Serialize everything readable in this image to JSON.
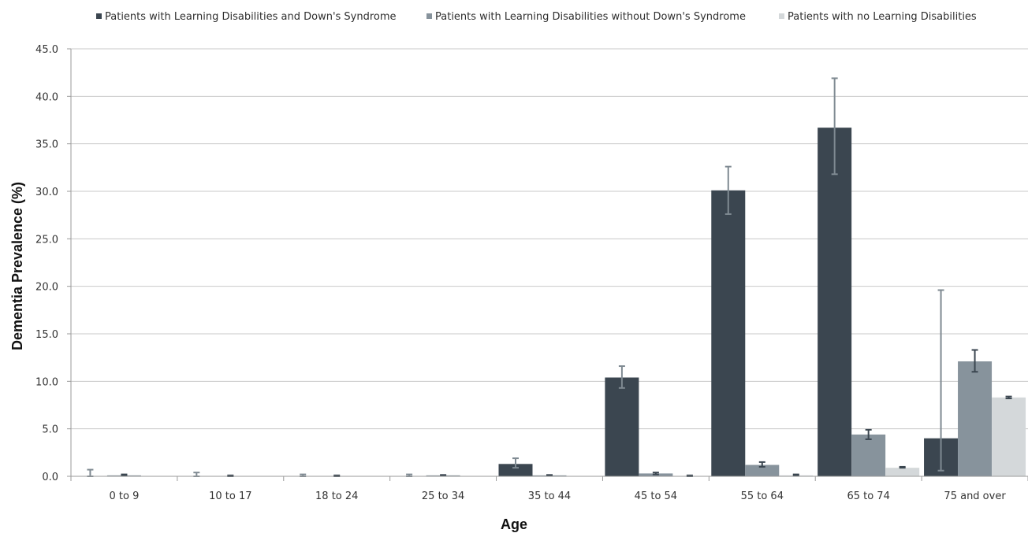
{
  "chart_data": {
    "type": "bar",
    "title": "",
    "xlabel": "Age",
    "ylabel": "Dementia Prevalence (%)",
    "ylim": [
      0,
      45
    ],
    "yticks": [
      "0.0",
      "5.0",
      "10.0",
      "15.0",
      "20.0",
      "25.0",
      "30.0",
      "35.0",
      "40.0",
      "45.0"
    ],
    "grid": true,
    "legend_position": "top",
    "categories": [
      "0 to 9",
      "10 to 17",
      "18 to 24",
      "25 to 34",
      "35 to 44",
      "45 to 54",
      "55 to 64",
      "65 to 74",
      "75 and over"
    ],
    "series": [
      {
        "name": "Patients with Learning Disabilities and Down's Syndrome",
        "color": "#3b4650",
        "values": [
          0.0,
          0.0,
          0.0,
          0.0,
          1.3,
          10.4,
          30.1,
          36.7,
          4.0
        ],
        "error_low": [
          0.0,
          0.0,
          0.0,
          0.0,
          0.9,
          9.3,
          27.6,
          31.8,
          0.6
        ],
        "error_high": [
          0.7,
          0.4,
          0.2,
          0.2,
          1.9,
          11.6,
          32.6,
          41.9,
          19.6
        ]
      },
      {
        "name": "Patients with Learning Disabilities without Down's Syndrome",
        "color": "#87939c",
        "values": [
          0.1,
          0.0,
          0.0,
          0.1,
          0.1,
          0.3,
          1.2,
          4.4,
          12.1
        ],
        "error_low": [
          0.1,
          0.0,
          0.0,
          0.1,
          0.1,
          0.2,
          1.0,
          3.9,
          11.0
        ],
        "error_high": [
          0.2,
          0.1,
          0.1,
          0.1,
          0.1,
          0.4,
          1.5,
          4.9,
          13.3
        ]
      },
      {
        "name": "Patients with no Learning Disabilities",
        "color": "#d4d8da",
        "values": [
          0.0,
          0.0,
          0.0,
          0.0,
          0.0,
          0.0,
          0.1,
          0.9,
          8.3
        ],
        "error_low": [
          0.0,
          0.0,
          0.0,
          0.0,
          0.0,
          0.0,
          0.1,
          0.9,
          8.2
        ],
        "error_high": [
          0.0,
          0.0,
          0.0,
          0.0,
          0.0,
          0.1,
          0.2,
          1.0,
          8.4
        ]
      }
    ]
  }
}
